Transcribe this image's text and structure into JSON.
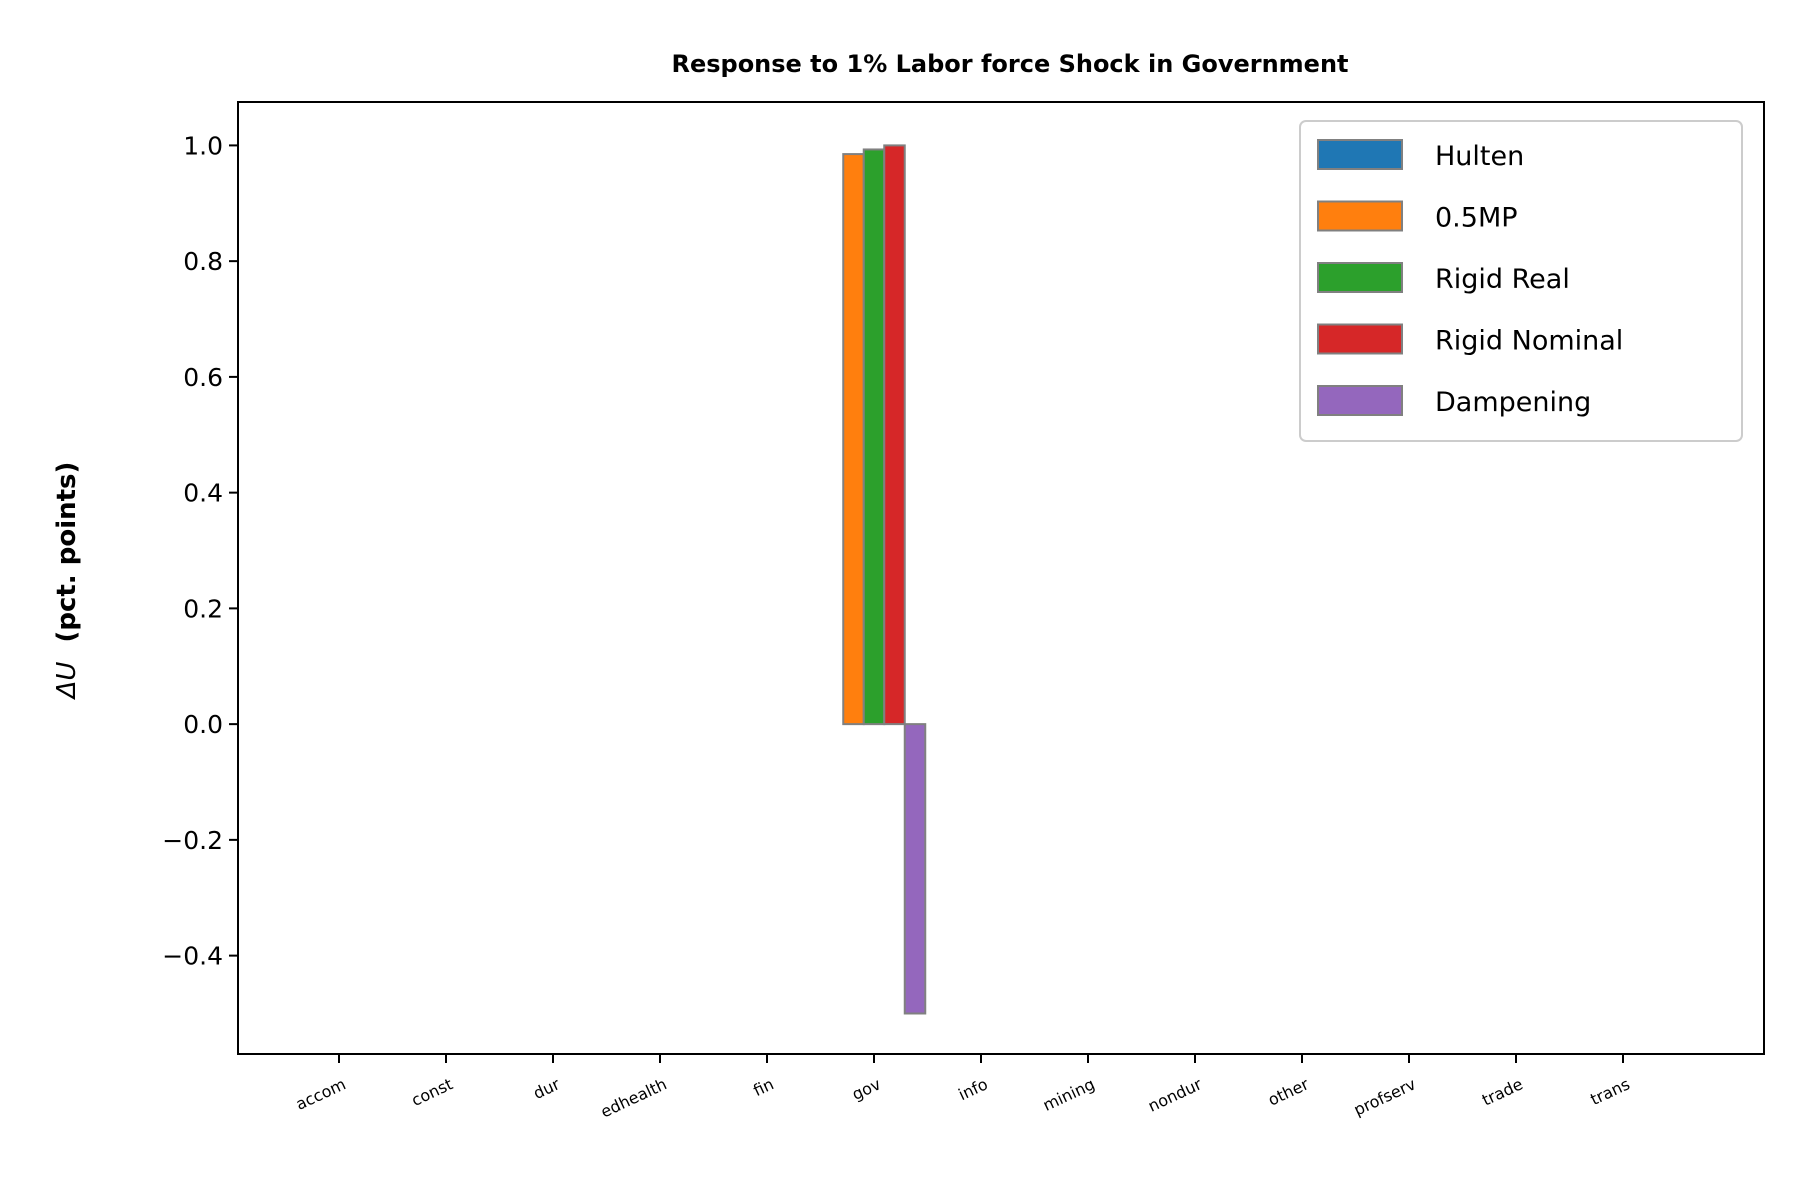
{
  "chart_data": {
    "type": "bar",
    "title": "Response to 1% Labor force Shock in Government",
    "ylabel_symbol": "ΔU",
    "ylabel": "(pct. points)",
    "xlabel": "",
    "ylim": [
      -0.57,
      1.075
    ],
    "yticks": [
      -0.4,
      -0.2,
      0.0,
      0.2,
      0.4,
      0.6,
      0.8,
      1.0
    ],
    "ytick_labels": [
      "−0.4",
      "−0.2",
      "0.0",
      "0.2",
      "0.4",
      "0.6",
      "0.8",
      "1.0"
    ],
    "categories": [
      "accom",
      "const",
      "dur",
      "edhealth",
      "fin",
      "gov",
      "info",
      "mining",
      "nondur",
      "other",
      "profserv",
      "trade",
      "trans"
    ],
    "series": [
      {
        "name": "Hulten",
        "color": "#1f77b4",
        "values": [
          0,
          0,
          0,
          0,
          0,
          0,
          0,
          0,
          0,
          0,
          0,
          0,
          0
        ]
      },
      {
        "name": "0.5MP",
        "color": "#ff7f0e",
        "values": [
          0,
          0,
          0,
          0,
          0,
          0.985,
          0,
          0,
          0,
          0,
          0,
          0,
          0
        ]
      },
      {
        "name": "Rigid Real",
        "color": "#2ca02c",
        "values": [
          0,
          0,
          0,
          0,
          0,
          0.993,
          0,
          0,
          0,
          0,
          0,
          0,
          0
        ]
      },
      {
        "name": "Rigid Nominal",
        "color": "#d62728",
        "values": [
          0,
          0,
          0,
          0,
          0,
          1.0,
          0,
          0,
          0,
          0,
          0,
          0,
          0
        ]
      },
      {
        "name": "Dampening",
        "color": "#9467bd",
        "values": [
          0,
          0,
          0,
          0,
          0,
          -0.5,
          0,
          0,
          0,
          0,
          0,
          0,
          0
        ]
      }
    ],
    "bar_edge_color": "#808080",
    "legend_position": "upper right",
    "grid": false
  }
}
